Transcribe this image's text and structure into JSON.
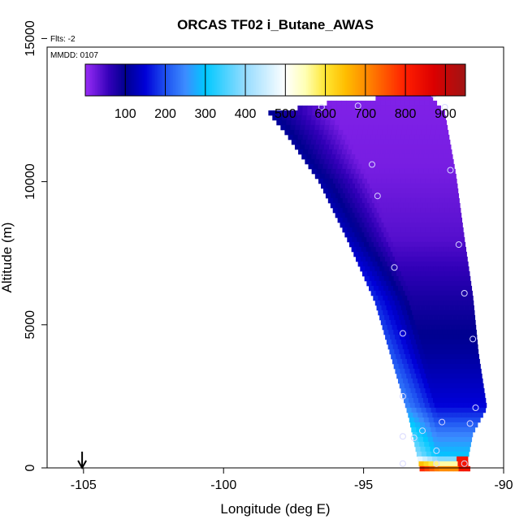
{
  "chart_data": {
    "type": "heatmap",
    "title": "ORCAS TF02 i_Butane_AWAS",
    "flights_label": "Flts: -2",
    "date_label": "MMDD: 0107",
    "xlabel": "Longitude (deg E)",
    "ylabel": "Altitude (m)",
    "xlim": [
      -106.3,
      -90
    ],
    "ylim": [
      0,
      14700
    ],
    "xticks": [
      -105,
      -100,
      -95,
      -90
    ],
    "xtick_labels": [
      "-105",
      "-100",
      "-95",
      "-90"
    ],
    "yticks": [
      0,
      5000,
      10000,
      15000
    ],
    "ytick_labels": [
      "0",
      "5000",
      "10000",
      "15000"
    ],
    "colorbar": {
      "vmin": 0,
      "vmax": 950,
      "ticks": [
        100,
        200,
        300,
        400,
        500,
        600,
        700,
        800,
        900
      ],
      "tick_labels": [
        "100",
        "200",
        "300",
        "400",
        "500",
        "600",
        "700",
        "800",
        "900"
      ],
      "color_stops": [
        {
          "v": 0,
          "c": "#9a2cf7"
        },
        {
          "v": 60,
          "c": "#3200b8"
        },
        {
          "v": 100,
          "c": "#00008f"
        },
        {
          "v": 150,
          "c": "#0000d8"
        },
        {
          "v": 200,
          "c": "#1e50f0"
        },
        {
          "v": 250,
          "c": "#3c8cff"
        },
        {
          "v": 300,
          "c": "#00c8ff"
        },
        {
          "v": 400,
          "c": "#96dcff"
        },
        {
          "v": 500,
          "c": "#ffffff"
        },
        {
          "v": 550,
          "c": "#ffffb4"
        },
        {
          "v": 600,
          "c": "#ffe632"
        },
        {
          "v": 650,
          "c": "#ffbe00"
        },
        {
          "v": 700,
          "c": "#ff8c00"
        },
        {
          "v": 800,
          "c": "#ff1e00"
        },
        {
          "v": 870,
          "c": "#dc0000"
        },
        {
          "v": 950,
          "c": "#a01414"
        }
      ]
    },
    "marker": {
      "x": -105.05,
      "label": "arrow"
    },
    "region": {
      "top_edge": [
        [
          -98.4,
          12400
        ],
        [
          -96.6,
          12700
        ],
        [
          -95.0,
          12900
        ],
        [
          -92.6,
          13000
        ]
      ],
      "bottom_left_edge": [
        [
          -98.4,
          12400
        ],
        [
          -97.8,
          11700
        ],
        [
          -96.6,
          10000
        ],
        [
          -95.6,
          8000
        ],
        [
          -94.6,
          5800
        ],
        [
          -94.0,
          3800
        ],
        [
          -93.4,
          1800
        ],
        [
          -93.0,
          0
        ]
      ],
      "right_edge": [
        [
          -92.6,
          13000
        ],
        [
          -92.1,
          12400
        ],
        [
          -91.7,
          10200
        ],
        [
          -91.4,
          8000
        ],
        [
          -91.1,
          6000
        ],
        [
          -90.9,
          4000
        ],
        [
          -90.6,
          2100
        ],
        [
          -91.1,
          1200
        ],
        [
          -91.3,
          200
        ],
        [
          -91.2,
          0
        ]
      ],
      "value_profile": [
        {
          "alt": 0,
          "v": 700
        },
        {
          "alt": 400,
          "v": 300
        },
        {
          "alt": 1200,
          "v": 240
        },
        {
          "alt": 2200,
          "v": 150
        },
        {
          "alt": 4000,
          "v": 110
        },
        {
          "alt": 6000,
          "v": 80
        },
        {
          "alt": 8000,
          "v": 40
        },
        {
          "alt": 10500,
          "v": 20
        },
        {
          "alt": 13000,
          "v": 15
        }
      ],
      "left_edge_enhancement": 90
    },
    "sample_points": [
      {
        "lon": -96.5,
        "alt": 12600
      },
      {
        "lon": -95.2,
        "alt": 12650
      },
      {
        "lon": -92.5,
        "alt": 13050
      },
      {
        "lon": -92.1,
        "alt": 12600
      },
      {
        "lon": -94.7,
        "alt": 10600
      },
      {
        "lon": -94.5,
        "alt": 9500
      },
      {
        "lon": -91.9,
        "alt": 10400
      },
      {
        "lon": -91.6,
        "alt": 7800
      },
      {
        "lon": -93.9,
        "alt": 7000
      },
      {
        "lon": -91.4,
        "alt": 6100
      },
      {
        "lon": -93.6,
        "alt": 4700
      },
      {
        "lon": -91.1,
        "alt": 4500
      },
      {
        "lon": -93.6,
        "alt": 2500
      },
      {
        "lon": -91.0,
        "alt": 2100
      },
      {
        "lon": -92.2,
        "alt": 1600
      },
      {
        "lon": -91.2,
        "alt": 1550
      },
      {
        "lon": -92.9,
        "alt": 1300
      },
      {
        "lon": -93.6,
        "alt": 1100
      },
      {
        "lon": -93.2,
        "alt": 1050
      },
      {
        "lon": -92.4,
        "alt": 600
      },
      {
        "lon": -93.6,
        "alt": 150
      },
      {
        "lon": -92.4,
        "alt": 150
      },
      {
        "lon": -91.4,
        "alt": 150
      }
    ]
  }
}
